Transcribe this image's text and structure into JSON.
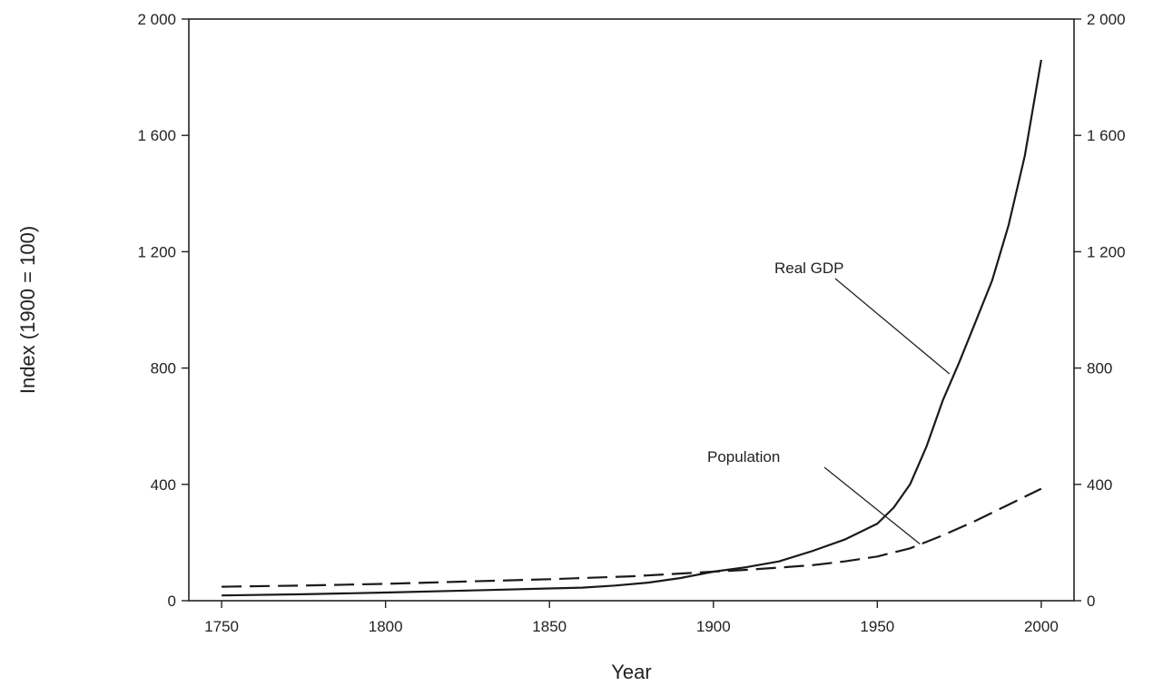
{
  "chart_data": {
    "type": "line",
    "title": "",
    "xlabel": "Year",
    "ylabel": "Index (1900 = 100)",
    "xlim": [
      1740,
      2010
    ],
    "ylim": [
      0,
      2000
    ],
    "xticks": [
      1750,
      1800,
      1850,
      1900,
      1950,
      2000
    ],
    "yticks": [
      0,
      400,
      800,
      1200,
      1600,
      2000
    ],
    "ytick_labels": [
      "0",
      "400",
      "800",
      "1 200",
      "1 600",
      "2 000"
    ],
    "secondary_y_axis": true,
    "grid": false,
    "series": [
      {
        "name": "Real GDP",
        "style": "solid",
        "color": "#1a1a1a",
        "x": [
          1750,
          1775,
          1800,
          1825,
          1850,
          1860,
          1870,
          1880,
          1890,
          1900,
          1910,
          1920,
          1930,
          1940,
          1950,
          1955,
          1960,
          1965,
          1970,
          1975,
          1980,
          1985,
          1990,
          1995,
          2000
        ],
        "y": [
          18,
          22,
          28,
          35,
          42,
          45,
          52,
          62,
          78,
          100,
          115,
          135,
          170,
          210,
          265,
          320,
          400,
          530,
          690,
          820,
          960,
          1100,
          1290,
          1530,
          1860
        ]
      },
      {
        "name": "Population",
        "style": "dashed",
        "color": "#1a1a1a",
        "x": [
          1750,
          1775,
          1800,
          1825,
          1850,
          1875,
          1900,
          1910,
          1920,
          1930,
          1940,
          1950,
          1960,
          1970,
          1980,
          1990,
          2000
        ],
        "y": [
          48,
          52,
          58,
          66,
          74,
          84,
          100,
          106,
          114,
          122,
          135,
          152,
          180,
          225,
          275,
          330,
          385
        ]
      }
    ],
    "annotations": [
      {
        "text": "Real GDP",
        "target_series": "Real GDP",
        "x": 1972,
        "y": 780
      },
      {
        "text": "Population",
        "target_series": "Population",
        "x": 1963,
        "y": 195
      }
    ]
  }
}
